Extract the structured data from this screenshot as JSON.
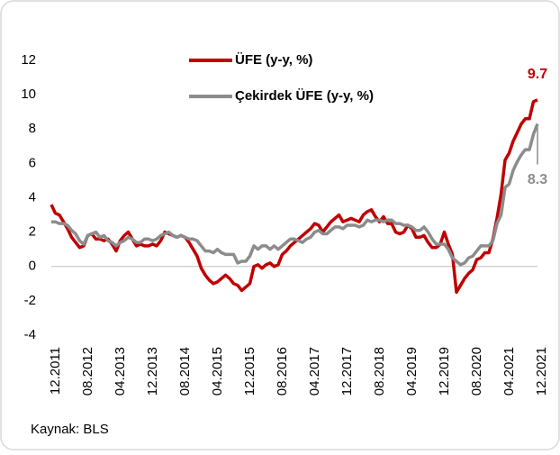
{
  "chart_data": {
    "type": "line",
    "categories": [
      "12.2011",
      null,
      null,
      null,
      null,
      null,
      null,
      null,
      "08.2012",
      null,
      null,
      null,
      null,
      null,
      null,
      null,
      "04.2013",
      null,
      null,
      null,
      null,
      null,
      null,
      null,
      "12.2013",
      null,
      null,
      null,
      null,
      null,
      null,
      null,
      "08.2014",
      null,
      null,
      null,
      null,
      null,
      null,
      null,
      "04.2015",
      null,
      null,
      null,
      null,
      null,
      null,
      null,
      "12.2015",
      null,
      null,
      null,
      null,
      null,
      null,
      null,
      "08.2016",
      null,
      null,
      null,
      null,
      null,
      null,
      null,
      "04.2017",
      null,
      null,
      null,
      null,
      null,
      null,
      null,
      "12.2017",
      null,
      null,
      null,
      null,
      null,
      null,
      null,
      "08.2018",
      null,
      null,
      null,
      null,
      null,
      null,
      null,
      "04.2019",
      null,
      null,
      null,
      null,
      null,
      null,
      null,
      "12.2019",
      null,
      null,
      null,
      null,
      null,
      null,
      null,
      "08.2020",
      null,
      null,
      null,
      null,
      null,
      null,
      null,
      "04.2021",
      null,
      null,
      null,
      null,
      null,
      null,
      null,
      "12.2021"
    ],
    "series": [
      {
        "name": "ÜFE (y-y, %)",
        "color": "#c00000",
        "values": [
          3.6,
          3.1,
          3.0,
          2.6,
          2.2,
          1.7,
          1.4,
          1.1,
          1.2,
          1.8,
          1.9,
          1.6,
          1.6,
          1.5,
          1.6,
          1.3,
          0.9,
          1.5,
          1.8,
          2.0,
          1.6,
          1.2,
          1.3,
          1.2,
          1.2,
          1.3,
          1.2,
          1.5,
          2.0,
          1.9,
          1.8,
          1.7,
          1.8,
          1.7,
          1.4,
          1.0,
          0.6,
          -0.1,
          -0.5,
          -0.8,
          -1.0,
          -0.9,
          -0.7,
          -0.5,
          -0.7,
          -1.0,
          -1.1,
          -1.4,
          -1.2,
          -1.0,
          0.0,
          0.1,
          -0.1,
          0.1,
          0.2,
          0.0,
          0.1,
          0.7,
          0.9,
          1.2,
          1.4,
          1.6,
          1.8,
          2.0,
          2.2,
          2.5,
          2.4,
          2.0,
          2.3,
          2.6,
          2.8,
          3.0,
          2.6,
          2.7,
          2.8,
          2.7,
          2.6,
          3.0,
          3.2,
          3.3,
          2.9,
          2.6,
          2.9,
          2.5,
          2.5,
          2.0,
          1.9,
          2.0,
          2.4,
          2.2,
          1.7,
          1.7,
          1.8,
          1.4,
          1.1,
          1.1,
          1.3,
          2.0,
          1.3,
          0.7,
          -1.5,
          -1.1,
          -0.7,
          -0.4,
          -0.2,
          0.4,
          0.5,
          0.8,
          0.8,
          1.6,
          2.8,
          4.2,
          6.2,
          6.6,
          7.3,
          7.8,
          8.3,
          8.6,
          8.6,
          9.6,
          9.7
        ]
      },
      {
        "name": "Çekirdek ÜFE (y-y, %)",
        "color": "#8c8c8c",
        "values": [
          2.6,
          2.6,
          2.5,
          2.5,
          2.4,
          2.1,
          1.9,
          1.5,
          1.3,
          1.8,
          1.9,
          2.0,
          1.7,
          1.8,
          1.5,
          1.4,
          1.2,
          1.4,
          1.5,
          1.7,
          1.6,
          1.4,
          1.4,
          1.6,
          1.6,
          1.5,
          1.6,
          1.8,
          1.9,
          2.0,
          1.8,
          1.7,
          1.8,
          1.7,
          1.6,
          1.6,
          1.5,
          1.2,
          0.9,
          0.9,
          0.8,
          1.0,
          0.8,
          0.7,
          0.7,
          0.7,
          0.2,
          0.3,
          0.3,
          0.6,
          1.2,
          1.0,
          1.2,
          1.2,
          1.0,
          1.2,
          1.0,
          1.2,
          1.4,
          1.6,
          1.6,
          1.5,
          1.4,
          1.6,
          1.7,
          2.0,
          2.1,
          1.9,
          1.9,
          2.1,
          2.3,
          2.3,
          2.2,
          2.4,
          2.4,
          2.4,
          2.3,
          2.4,
          2.7,
          2.6,
          2.7,
          2.7,
          2.6,
          2.7,
          2.7,
          2.5,
          2.5,
          2.4,
          2.4,
          2.3,
          2.1,
          2.1,
          2.3,
          2.0,
          1.6,
          1.3,
          1.3,
          1.3,
          1.0,
          0.5,
          0.3,
          0.1,
          0.2,
          0.5,
          0.6,
          0.9,
          1.2,
          1.2,
          1.2,
          1.5,
          2.5,
          3.0,
          4.6,
          4.8,
          5.6,
          6.1,
          6.5,
          6.8,
          6.8,
          7.7,
          8.3
        ]
      }
    ],
    "ylim": [
      -4,
      12
    ],
    "yticks": [
      -4,
      -2,
      0,
      2,
      4,
      6,
      8,
      10,
      12
    ],
    "grid": false,
    "legend": "top",
    "source": "Kaynak: BLS"
  }
}
